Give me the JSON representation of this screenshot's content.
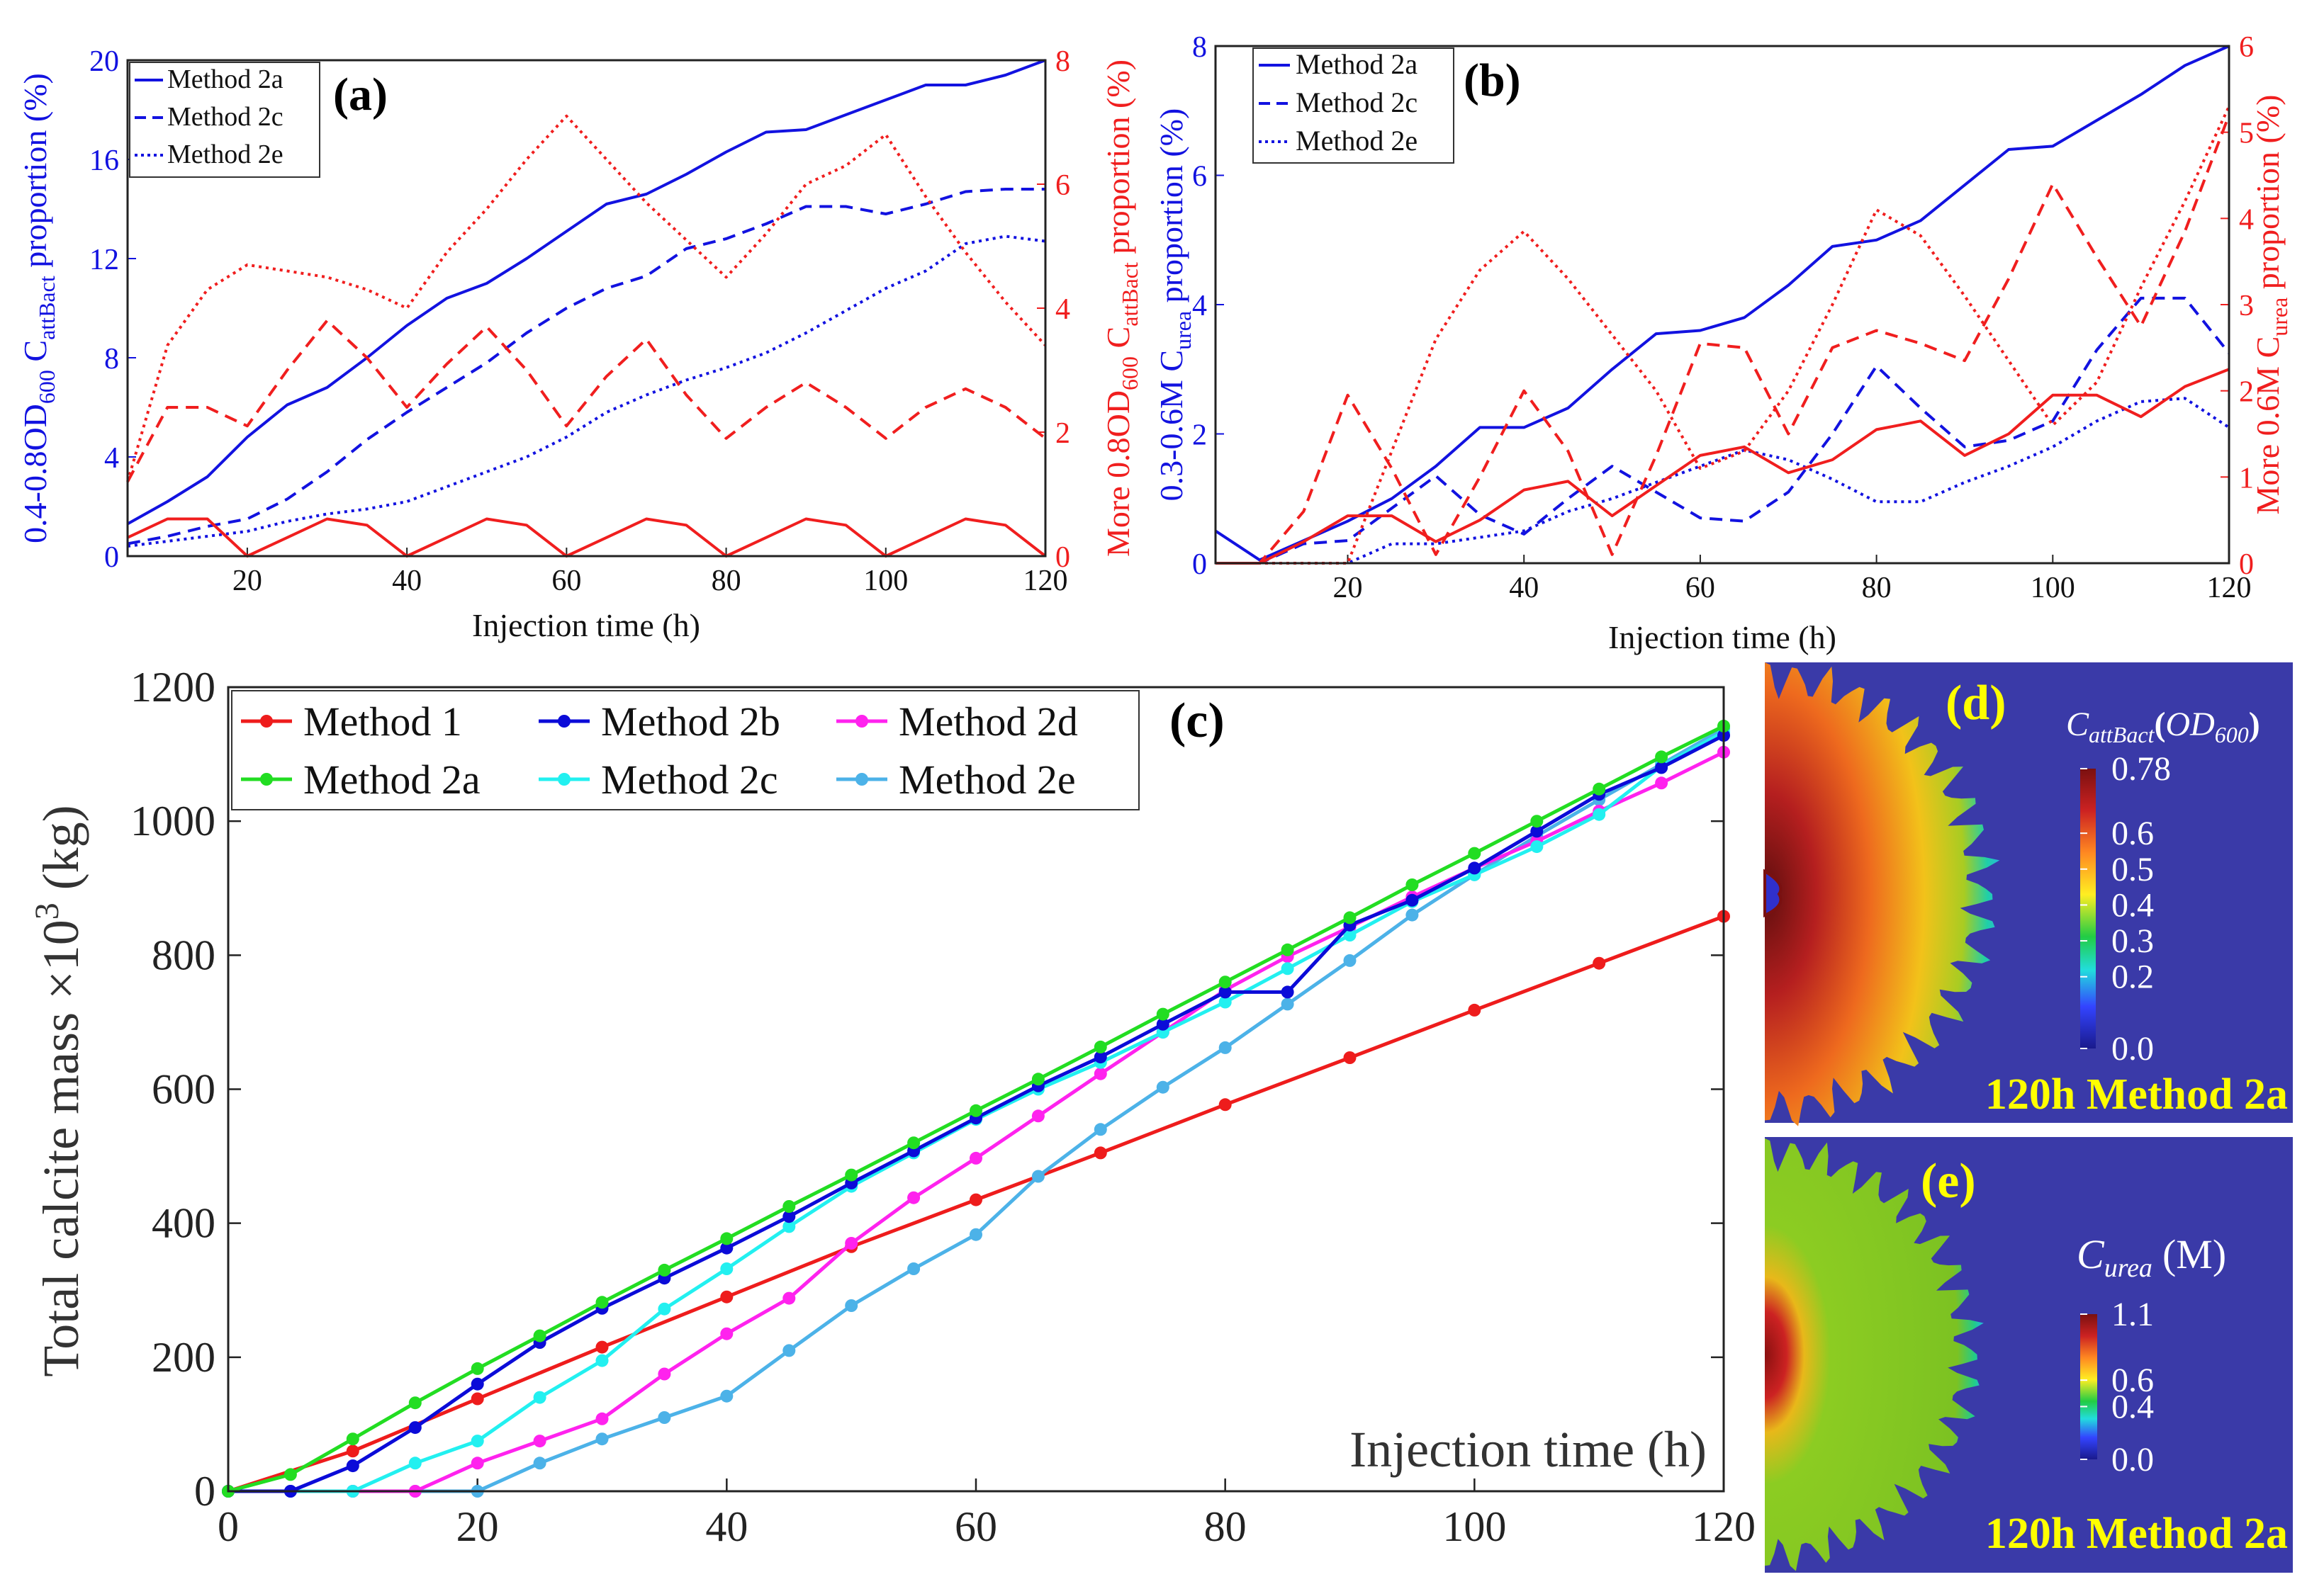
{
  "colors": {
    "blue": "#1212e0",
    "red": "#f01e1e",
    "m1": "#ee1c1c",
    "m2a": "#22dd22",
    "m2b": "#0b0bd8",
    "m2c": "#22f0f0",
    "m2d": "#ff22ee",
    "m2e": "#4cb2e8",
    "mapbg": "#3a3aa8",
    "label_yellow": "#ffff00"
  },
  "panel_labels": {
    "a": "(a)",
    "b": "(b)",
    "c": "(c)",
    "d": "(d)",
    "e": "(e)"
  },
  "chart_data": [
    {
      "id": "a",
      "type": "line",
      "title": "(a)",
      "xlabel": "Injection time (h)",
      "ylabel_left": {
        "a": "0.4-0.8OD",
        "sub1": "600",
        "b": " C",
        "sub2": "attBact",
        "c": " proportion (%)"
      },
      "ylabel_right": {
        "a": "More 0.8OD",
        "sub1": "600",
        "b": " C",
        "sub2": "attBact",
        "c": " proportion (%)"
      },
      "xlim": [
        5,
        120
      ],
      "ylim_left": [
        0,
        20
      ],
      "ylim_right": [
        0,
        8
      ],
      "xticks": [
        20,
        40,
        60,
        80,
        100,
        120
      ],
      "yticks_left": [
        0,
        4,
        8,
        12,
        16,
        20
      ],
      "yticks_right": [
        0,
        2,
        4,
        6,
        8
      ],
      "legend": [
        "Method 2a",
        "Method 2c",
        "Method 2e"
      ],
      "x": [
        5,
        10,
        15,
        20,
        25,
        30,
        35,
        40,
        45,
        50,
        55,
        60,
        65,
        70,
        75,
        80,
        85,
        90,
        95,
        100,
        105,
        110,
        115,
        120
      ],
      "series": [
        {
          "name": "Method 2a",
          "axis": "left",
          "color": "blue",
          "dash": "solid",
          "values": [
            1.3,
            2.2,
            3.2,
            4.8,
            6.1,
            6.8,
            8.0,
            9.3,
            10.4,
            11.0,
            12.0,
            13.1,
            14.2,
            14.6,
            15.4,
            16.3,
            17.1,
            17.2,
            17.8,
            18.4,
            19.0,
            19.0,
            19.4,
            20.0
          ]
        },
        {
          "name": "Method 2c",
          "axis": "left",
          "color": "blue",
          "dash": "dashed",
          "values": [
            0.5,
            0.8,
            1.2,
            1.5,
            2.3,
            3.4,
            4.7,
            5.8,
            6.8,
            7.8,
            9.0,
            10.0,
            10.8,
            11.3,
            12.4,
            12.8,
            13.4,
            14.1,
            14.1,
            13.8,
            14.2,
            14.7,
            14.8,
            14.8
          ]
        },
        {
          "name": "Method 2e",
          "axis": "left",
          "color": "blue",
          "dash": "dotted",
          "values": [
            0.4,
            0.6,
            0.8,
            1.0,
            1.4,
            1.7,
            1.9,
            2.2,
            2.8,
            3.4,
            4.0,
            4.8,
            5.8,
            6.5,
            7.1,
            7.6,
            8.2,
            9.0,
            9.9,
            10.8,
            11.5,
            12.6,
            12.9,
            12.7
          ]
        },
        {
          "name": "Method 2a (More)",
          "axis": "right",
          "color": "red",
          "dash": "solid",
          "values": [
            0.3,
            0.6,
            0.6,
            0.0,
            0.3,
            0.6,
            0.5,
            0.0,
            0.3,
            0.6,
            0.5,
            0.0,
            0.3,
            0.6,
            0.5,
            0.0,
            0.3,
            0.6,
            0.5,
            0.0,
            0.3,
            0.6,
            0.5,
            0.0
          ]
        },
        {
          "name": "Method 2c (More)",
          "axis": "right",
          "color": "red",
          "dash": "dashed",
          "values": [
            1.2,
            2.4,
            2.4,
            2.1,
            3.0,
            3.8,
            3.2,
            2.4,
            3.1,
            3.7,
            3.0,
            2.1,
            2.9,
            3.5,
            2.6,
            1.9,
            2.4,
            2.8,
            2.4,
            1.9,
            2.4,
            2.7,
            2.4,
            1.9
          ]
        },
        {
          "name": "Method 2e (More)",
          "axis": "right",
          "color": "red",
          "dash": "dotted",
          "values": [
            1.2,
            3.4,
            4.3,
            4.7,
            4.6,
            4.5,
            4.3,
            4.0,
            4.9,
            5.6,
            6.4,
            7.1,
            6.4,
            5.7,
            5.1,
            4.5,
            5.2,
            6.0,
            6.3,
            6.8,
            5.8,
            4.9,
            4.1,
            3.4
          ]
        }
      ]
    },
    {
      "id": "b",
      "type": "line",
      "title": "(b)",
      "xlabel": "Injection time (h)",
      "ylabel_left": {
        "a": "0.3-0.6M C",
        "sub1": "urea",
        "c": " proportion (%)"
      },
      "ylabel_right": {
        "a": "More  0.6M C",
        "sub1": "urea",
        "c": " proportion (%)"
      },
      "xlim": [
        5,
        120
      ],
      "ylim_left": [
        0,
        8
      ],
      "ylim_right": [
        0,
        6
      ],
      "xticks": [
        20,
        40,
        60,
        80,
        100,
        120
      ],
      "yticks_left": [
        0,
        2,
        4,
        6,
        8
      ],
      "yticks_right": [
        0,
        1,
        2,
        3,
        4,
        5,
        6
      ],
      "legend": [
        "Method 2a",
        "Method 2c",
        "Method 2e"
      ],
      "x": [
        5,
        10,
        15,
        20,
        25,
        30,
        35,
        40,
        45,
        50,
        55,
        60,
        65,
        70,
        75,
        80,
        85,
        90,
        95,
        100,
        105,
        110,
        115,
        120
      ],
      "series": [
        {
          "name": "Method 2a",
          "axis": "left",
          "color": "blue",
          "dash": "solid",
          "values": [
            0.5,
            0.05,
            0.35,
            0.65,
            1.0,
            1.5,
            2.1,
            2.1,
            2.4,
            3.0,
            3.55,
            3.6,
            3.8,
            4.3,
            4.9,
            5.0,
            5.3,
            5.85,
            6.4,
            6.45,
            6.85,
            7.25,
            7.7,
            8.0
          ]
        },
        {
          "name": "Method 2c",
          "axis": "left",
          "color": "blue",
          "dash": "dashed",
          "values": [
            0.0,
            0.0,
            0.3,
            0.35,
            0.85,
            1.35,
            0.75,
            0.45,
            1.0,
            1.5,
            1.1,
            0.7,
            0.65,
            1.1,
            2.0,
            3.05,
            2.4,
            1.8,
            1.9,
            2.2,
            3.3,
            4.1,
            4.1,
            3.25
          ]
        },
        {
          "name": "Method 2e",
          "axis": "left",
          "color": "blue",
          "dash": "dotted",
          "values": [
            0.0,
            0.0,
            0.0,
            0.0,
            0.3,
            0.3,
            0.4,
            0.5,
            0.8,
            1.0,
            1.25,
            1.5,
            1.75,
            1.6,
            1.3,
            0.95,
            0.95,
            1.25,
            1.5,
            1.8,
            2.2,
            2.5,
            2.55,
            2.1
          ]
        },
        {
          "name": "Method 2a (More)",
          "axis": "right",
          "color": "red",
          "dash": "solid",
          "values": [
            0.0,
            0.0,
            0.25,
            0.55,
            0.55,
            0.25,
            0.5,
            0.85,
            0.95,
            0.55,
            0.9,
            1.25,
            1.35,
            1.05,
            1.2,
            1.55,
            1.65,
            1.25,
            1.5,
            1.95,
            1.95,
            1.7,
            2.05,
            2.25
          ]
        },
        {
          "name": "Method 2c (More)",
          "axis": "right",
          "color": "red",
          "dash": "dashed",
          "values": [
            0.0,
            0.0,
            0.6,
            1.95,
            1.1,
            0.1,
            1.0,
            2.0,
            1.3,
            0.1,
            1.25,
            2.55,
            2.5,
            1.5,
            2.5,
            2.7,
            2.55,
            2.35,
            3.3,
            4.4,
            3.55,
            2.75,
            3.85,
            5.2
          ]
        },
        {
          "name": "Method 2e (More)",
          "axis": "right",
          "color": "red",
          "dash": "dotted",
          "values": [
            0.0,
            0.0,
            0.0,
            0.0,
            1.3,
            2.6,
            3.4,
            3.85,
            3.3,
            2.65,
            2.0,
            1.1,
            1.3,
            2.0,
            3.0,
            4.1,
            3.8,
            3.1,
            2.35,
            1.6,
            2.1,
            3.2,
            4.2,
            5.3
          ]
        }
      ]
    },
    {
      "id": "c",
      "type": "line",
      "title": "(c)",
      "xlabel": "Injection time (h)",
      "ylabel": {
        "a": "Total calcite mass ",
        "times": "×",
        "b": "10",
        "sup": "3",
        "c": " (kg)"
      },
      "xlim": [
        0,
        120
      ],
      "ylim": [
        0,
        1200
      ],
      "xticks": [
        0,
        20,
        40,
        60,
        80,
        100,
        120
      ],
      "yticks": [
        0,
        200,
        400,
        600,
        800,
        1000,
        1200
      ],
      "series": [
        {
          "name": "Method 1",
          "color": "m1",
          "x": [
            0,
            10,
            20,
            30,
            40,
            50,
            60,
            70,
            80,
            90,
            100,
            110,
            120
          ],
          "values": [
            0,
            60,
            138,
            215,
            290,
            365,
            435,
            505,
            577,
            647,
            718,
            788,
            858
          ]
        },
        {
          "name": "Method 2a",
          "color": "m2a",
          "x": [
            0,
            5,
            10,
            15,
            20,
            25,
            30,
            35,
            40,
            45,
            50,
            55,
            60,
            65,
            70,
            75,
            80,
            85,
            90,
            95,
            100,
            105,
            110,
            115,
            120
          ],
          "values": [
            0,
            25,
            78,
            132,
            183,
            232,
            282,
            330,
            377,
            425,
            472,
            520,
            568,
            615,
            663,
            712,
            760,
            808,
            856,
            905,
            952,
            1000,
            1048,
            1096,
            1142
          ]
        },
        {
          "name": "Method 2b",
          "color": "m2b",
          "x": [
            0,
            5,
            10,
            15,
            20,
            25,
            30,
            35,
            40,
            45,
            50,
            55,
            60,
            65,
            70,
            75,
            80,
            85,
            90,
            95,
            100,
            105,
            110,
            115,
            120
          ],
          "values": [
            0,
            0,
            38,
            95,
            160,
            222,
            273,
            318,
            363,
            410,
            460,
            508,
            557,
            605,
            648,
            697,
            745,
            745,
            845,
            882,
            930,
            985,
            1040,
            1080,
            1128
          ]
        },
        {
          "name": "Method 2c",
          "color": "m2c",
          "x": [
            0,
            5,
            10,
            15,
            20,
            25,
            30,
            35,
            40,
            45,
            50,
            55,
            60,
            65,
            70,
            75,
            80,
            85,
            90,
            95,
            100,
            105,
            110,
            115,
            120
          ],
          "values": [
            0,
            0,
            0,
            42,
            75,
            140,
            195,
            272,
            332,
            395,
            455,
            505,
            555,
            600,
            640,
            685,
            730,
            780,
            830,
            880,
            920,
            962,
            1010,
            1082,
            1133
          ]
        },
        {
          "name": "Method 2d",
          "color": "m2d",
          "x": [
            0,
            5,
            10,
            15,
            20,
            25,
            30,
            35,
            40,
            45,
            50,
            55,
            60,
            65,
            70,
            75,
            80,
            85,
            90,
            95,
            100,
            105,
            110,
            115,
            120
          ],
          "values": [
            0,
            0,
            0,
            0,
            42,
            75,
            108,
            175,
            235,
            288,
            370,
            438,
            497,
            560,
            623,
            685,
            748,
            798,
            842,
            887,
            930,
            970,
            1015,
            1057,
            1103
          ]
        },
        {
          "name": "Method 2e",
          "color": "m2e",
          "x": [
            0,
            5,
            10,
            15,
            20,
            25,
            30,
            35,
            40,
            45,
            50,
            55,
            60,
            65,
            70,
            75,
            80,
            85,
            90,
            95,
            100,
            105,
            110,
            115,
            120
          ],
          "values": [
            0,
            0,
            0,
            0,
            0,
            42,
            78,
            110,
            142,
            210,
            277,
            332,
            383,
            470,
            540,
            603,
            662,
            727,
            792,
            860,
            920,
            978,
            1032,
            1085,
            1138
          ]
        }
      ]
    }
  ],
  "map_d": {
    "title": "(d)",
    "colorbar_var": {
      "main": "C",
      "sub": "attBact",
      "paren_open": "(",
      "unit": "OD",
      "unit_sub": "600",
      "paren_close": ")"
    },
    "colorbar_ticks": [
      "0.78",
      "0.6",
      "0.5",
      "0.4",
      "0.3",
      "0.2",
      "0.0"
    ],
    "colorbar_range": [
      0.0,
      0.78
    ],
    "caption": "120h Method 2a"
  },
  "map_e": {
    "title": "(e)",
    "colorbar_var": {
      "main": "C",
      "sub": "urea",
      "unit": "(M)"
    },
    "colorbar_ticks": [
      "1.1",
      "0.6",
      "0.4",
      "0.0"
    ],
    "colorbar_range": [
      0.0,
      1.1
    ],
    "caption": "120h Method 2a"
  }
}
